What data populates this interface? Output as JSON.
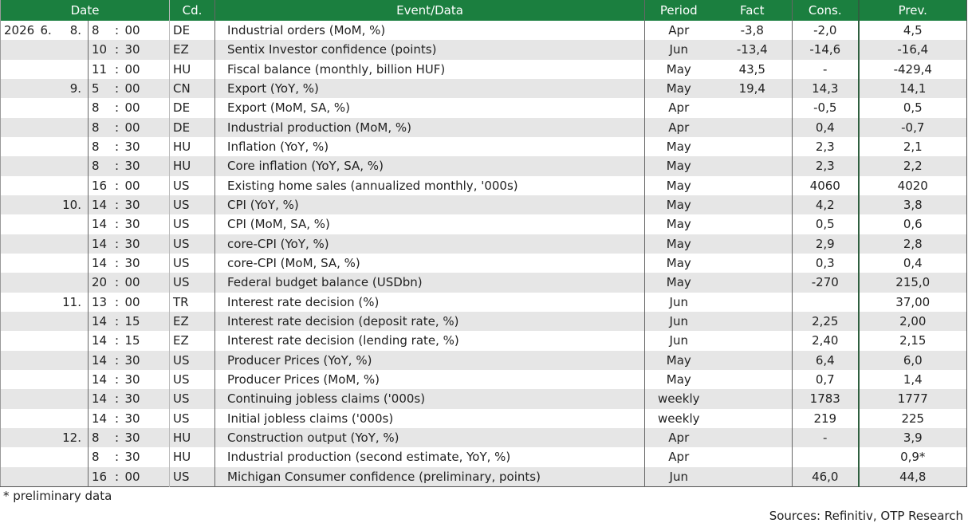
{
  "table": {
    "header": [
      "Date",
      "Cd.",
      "Event/Data",
      "Period",
      "Fact",
      "Cons.",
      "Prev."
    ],
    "rows": [
      [
        "2026",
        "6.",
        "8.",
        "8",
        ":",
        "00",
        "DE",
        "Industrial orders (MoM, %)",
        "Apr",
        "-3,8",
        "-2,0",
        "4,5"
      ],
      [
        null,
        null,
        null,
        "10",
        ":",
        "30",
        "EZ",
        "Sentix Investor confidence (points)",
        "Jun",
        "-13,4",
        "-14,6",
        "-16,4"
      ],
      [
        null,
        null,
        null,
        "11",
        ":",
        "00",
        "HU",
        "Fiscal balance (monthly, billion HUF)",
        "May",
        "43,5",
        "-",
        "-429,4"
      ],
      [
        null,
        null,
        "9.",
        "5",
        ":",
        "00",
        "CN",
        "Export (YoY, %)",
        "May",
        "19,4",
        "14,3",
        "14,1"
      ],
      [
        null,
        null,
        null,
        "8",
        ":",
        "00",
        "DE",
        "Export (MoM, SA, %)",
        "Apr",
        null,
        "-0,5",
        "0,5"
      ],
      [
        null,
        null,
        null,
        "8",
        ":",
        "00",
        "DE",
        "Industrial production (MoM, %)",
        "Apr",
        null,
        "0,4",
        "-0,7"
      ],
      [
        null,
        null,
        null,
        "8",
        ":",
        "30",
        "HU",
        "Inflation (YoY, %)",
        "May",
        null,
        "2,3",
        "2,1"
      ],
      [
        null,
        null,
        null,
        "8",
        ":",
        "30",
        "HU",
        "Core inflation (YoY, SA, %)",
        "May",
        null,
        "2,3",
        "2,2"
      ],
      [
        null,
        null,
        null,
        "16",
        ":",
        "00",
        "US",
        "Existing home sales (annualized monthly, '000s)",
        "May",
        null,
        "4060",
        "4020"
      ],
      [
        null,
        null,
        "10.",
        "14",
        ":",
        "30",
        "US",
        "CPI (YoY, %)",
        "May",
        null,
        "4,2",
        "3,8"
      ],
      [
        null,
        null,
        null,
        "14",
        ":",
        "30",
        "US",
        "CPI (MoM, SA, %)",
        "May",
        null,
        "0,5",
        "0,6"
      ],
      [
        null,
        null,
        null,
        "14",
        ":",
        "30",
        "US",
        "core-CPI (YoY, %)",
        "May",
        null,
        "2,9",
        "2,8"
      ],
      [
        null,
        null,
        null,
        "14",
        ":",
        "30",
        "US",
        "core-CPI (MoM, SA, %)",
        "May",
        null,
        "0,3",
        "0,4"
      ],
      [
        null,
        null,
        null,
        "20",
        ":",
        "00",
        "US",
        "Federal budget balance (USDbn)",
        "May",
        null,
        "-270",
        "215,0"
      ],
      [
        null,
        null,
        "11.",
        "13",
        ":",
        "00",
        "TR",
        "Interest rate decision (%)",
        "Jun",
        null,
        null,
        "37,00"
      ],
      [
        null,
        null,
        null,
        "14",
        ":",
        "15",
        "EZ",
        "Interest rate decision (deposit rate, %)",
        "Jun",
        null,
        "2,25",
        "2,00"
      ],
      [
        null,
        null,
        null,
        "14",
        ":",
        "15",
        "EZ",
        "Interest rate decision (lending rate, %)",
        "Jun",
        null,
        "2,40",
        "2,15"
      ],
      [
        null,
        null,
        null,
        "14",
        ":",
        "30",
        "US",
        "Producer Prices (YoY, %)",
        "May",
        null,
        "6,4",
        "6,0"
      ],
      [
        null,
        null,
        null,
        "14",
        ":",
        "30",
        "US",
        "Producer Prices (MoM, %)",
        "May",
        null,
        "0,7",
        "1,4"
      ],
      [
        null,
        null,
        null,
        "14",
        ":",
        "30",
        "US",
        "Continuing jobless claims ('000s)",
        "weekly",
        null,
        "1783",
        "1777"
      ],
      [
        null,
        null,
        null,
        "14",
        ":",
        "30",
        "US",
        "Initial jobless claims ('000s)",
        "weekly",
        null,
        "219",
        "225"
      ],
      [
        null,
        null,
        "12.",
        "8",
        ":",
        "30",
        "HU",
        "Construction output (YoY, %)",
        "Apr",
        null,
        "-",
        "3,9"
      ],
      [
        null,
        null,
        null,
        "8",
        ":",
        "30",
        "HU",
        "Industrial production (second estimate, YoY, %)",
        "Apr",
        null,
        null,
        "0,9*"
      ],
      [
        null,
        null,
        null,
        "16",
        ":",
        "00",
        "US",
        "Michigan Consumer confidence (preliminary, points)",
        "Jun",
        null,
        "46,0",
        "44,8"
      ]
    ]
  },
  "footnote": "* preliminary data",
  "source": "Sources: Refinitiv, OTP Research"
}
